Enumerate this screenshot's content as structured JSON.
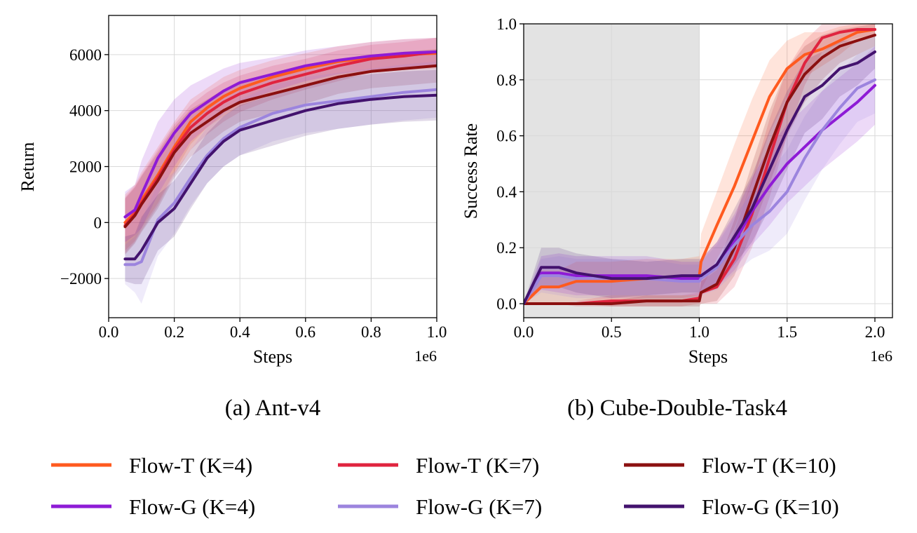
{
  "colors": {
    "flow_t_k4": "#ff5a1f",
    "flow_t_k7": "#e0243f",
    "flow_t_k10": "#8b1010",
    "flow_g_k4": "#8e1bd6",
    "flow_g_k7": "#9c84de",
    "flow_g_k10": "#43126e",
    "shade": "#e3e3e3",
    "grid": "#d9d9d9"
  },
  "legend": {
    "items": [
      {
        "label": "Flow-T (K=4)",
        "color_key": "flow_t_k4"
      },
      {
        "label": "Flow-T (K=7)",
        "color_key": "flow_t_k7"
      },
      {
        "label": "Flow-T (K=10)",
        "color_key": "flow_t_k10"
      },
      {
        "label": "Flow-G (K=4)",
        "color_key": "flow_g_k4"
      },
      {
        "label": "Flow-G (K=7)",
        "color_key": "flow_g_k7"
      },
      {
        "label": "Flow-G (K=10)",
        "color_key": "flow_g_k10"
      }
    ]
  },
  "chart_data": [
    {
      "type": "line",
      "caption": "(a) Ant-v4",
      "xlabel": "Steps",
      "ylabel": "Return",
      "x_offset_label": "1e6",
      "xlim": [
        0.0,
        1.0
      ],
      "ylim": [
        -3400,
        7400
      ],
      "xticks": [
        0.0,
        0.2,
        0.4,
        0.6,
        0.8,
        1.0
      ],
      "xtick_labels": [
        "0.0",
        "0.2",
        "0.4",
        "0.6",
        "0.8",
        "1.0"
      ],
      "yticks": [
        -2000,
        0,
        2000,
        4000,
        6000
      ],
      "ytick_labels": [
        "−2000",
        "0",
        "2000",
        "4000",
        "6000"
      ],
      "grid": true,
      "x": [
        0.05,
        0.08,
        0.1,
        0.15,
        0.2,
        0.25,
        0.3,
        0.35,
        0.4,
        0.5,
        0.6,
        0.7,
        0.8,
        0.9,
        1.0
      ],
      "series": [
        {
          "name": "Flow-T (K=4)",
          "color_key": "flow_t_k4",
          "values": [
            0,
            350,
            800,
            1700,
            2700,
            3600,
            4100,
            4500,
            4800,
            5200,
            5500,
            5750,
            5900,
            6000,
            6050
          ],
          "band": [
            1000,
            1000,
            1000,
            1000,
            900,
            800,
            700,
            700,
            650,
            600,
            550,
            550,
            550,
            550,
            550
          ]
        },
        {
          "name": "Flow-T (K=7)",
          "color_key": "flow_t_k7",
          "values": [
            -100,
            300,
            700,
            1600,
            2600,
            3400,
            3900,
            4300,
            4600,
            5000,
            5300,
            5600,
            5850,
            5950,
            6100
          ],
          "band": [
            1000,
            1000,
            1000,
            1000,
            900,
            800,
            750,
            700,
            650,
            600,
            550,
            550,
            500,
            500,
            500
          ]
        },
        {
          "name": "Flow-T (K=10)",
          "color_key": "flow_t_k10",
          "values": [
            -150,
            250,
            650,
            1500,
            2500,
            3200,
            3600,
            4000,
            4300,
            4600,
            4900,
            5200,
            5400,
            5500,
            5600
          ],
          "band": [
            1000,
            1000,
            1000,
            1000,
            900,
            850,
            800,
            750,
            700,
            700,
            650,
            600,
            600,
            600,
            600
          ]
        },
        {
          "name": "Flow-G (K=4)",
          "color_key": "flow_g_k4",
          "values": [
            200,
            450,
            1000,
            2300,
            3200,
            3900,
            4300,
            4700,
            5000,
            5300,
            5600,
            5800,
            5950,
            6050,
            6100
          ],
          "band": [
            900,
            900,
            1200,
            1300,
            1200,
            1000,
            900,
            800,
            700,
            600,
            550,
            500,
            500,
            500,
            500
          ]
        },
        {
          "name": "Flow-G (K=7)",
          "color_key": "flow_g_k7",
          "values": [
            -1500,
            -1500,
            -1400,
            100,
            700,
            1600,
            2400,
            3000,
            3400,
            3900,
            4200,
            4350,
            4500,
            4650,
            4750
          ],
          "band": [
            700,
            1000,
            1500,
            1300,
            1100,
            1000,
            1000,
            1000,
            1000,
            1000,
            1000,
            1000,
            1000,
            1000,
            1000
          ]
        },
        {
          "name": "Flow-G (K=10)",
          "color_key": "flow_g_k10",
          "values": [
            -1300,
            -1300,
            -1000,
            0,
            500,
            1400,
            2300,
            2900,
            3300,
            3650,
            4000,
            4250,
            4400,
            4500,
            4550
          ],
          "band": [
            800,
            900,
            1200,
            1000,
            1000,
            900,
            900,
            900,
            900,
            900,
            900,
            900,
            900,
            900,
            900
          ]
        }
      ]
    },
    {
      "type": "line",
      "caption": "(b) Cube-Double-Task4",
      "xlabel": "Steps",
      "ylabel": "Success Rate",
      "x_offset_label": "1e6",
      "xlim": [
        0.0,
        2.1
      ],
      "ylim": [
        -0.05,
        1.0
      ],
      "xticks": [
        0.0,
        0.5,
        1.0,
        1.5,
        2.0
      ],
      "xtick_labels": [
        "0.0",
        "0.5",
        "1.0",
        "1.5",
        "2.0"
      ],
      "yticks": [
        0.0,
        0.2,
        0.4,
        0.6,
        0.8,
        1.0
      ],
      "ytick_labels": [
        "0.0",
        "0.2",
        "0.4",
        "0.6",
        "0.8",
        "1.0"
      ],
      "grid": true,
      "shaded_region": [
        0.0,
        1.0
      ],
      "x": [
        0.0,
        0.1,
        0.2,
        0.3,
        0.5,
        0.7,
        0.9,
        1.0,
        1.01,
        1.1,
        1.2,
        1.3,
        1.4,
        1.5,
        1.6,
        1.7,
        1.8,
        1.9,
        2.0
      ],
      "series": [
        {
          "name": "Flow-T (K=4)",
          "color_key": "flow_t_k4",
          "values": [
            0.0,
            0.06,
            0.06,
            0.08,
            0.08,
            0.09,
            0.09,
            0.1,
            0.15,
            0.28,
            0.42,
            0.58,
            0.74,
            0.84,
            0.89,
            0.91,
            0.94,
            0.97,
            0.98
          ],
          "band": [
            0.0,
            0.06,
            0.06,
            0.07,
            0.07,
            0.07,
            0.07,
            0.07,
            0.1,
            0.12,
            0.15,
            0.15,
            0.13,
            0.1,
            0.08,
            0.06,
            0.05,
            0.03,
            0.02
          ]
        },
        {
          "name": "Flow-T (K=7)",
          "color_key": "flow_t_k7",
          "values": [
            0.0,
            0.0,
            0.0,
            0.0,
            0.01,
            0.01,
            0.01,
            0.02,
            0.04,
            0.06,
            0.16,
            0.32,
            0.52,
            0.72,
            0.86,
            0.95,
            0.97,
            0.98,
            0.98
          ],
          "band": [
            0.0,
            0.0,
            0.0,
            0.01,
            0.02,
            0.02,
            0.02,
            0.02,
            0.04,
            0.06,
            0.1,
            0.12,
            0.14,
            0.12,
            0.08,
            0.05,
            0.04,
            0.03,
            0.02
          ]
        },
        {
          "name": "Flow-T (K=10)",
          "color_key": "flow_t_k10",
          "values": [
            0.0,
            0.0,
            0.0,
            0.0,
            0.0,
            0.01,
            0.01,
            0.01,
            0.04,
            0.07,
            0.2,
            0.38,
            0.56,
            0.72,
            0.82,
            0.88,
            0.92,
            0.94,
            0.96
          ],
          "band": [
            0.0,
            0.0,
            0.0,
            0.0,
            0.01,
            0.02,
            0.02,
            0.02,
            0.04,
            0.06,
            0.1,
            0.12,
            0.13,
            0.12,
            0.1,
            0.08,
            0.06,
            0.05,
            0.04
          ]
        },
        {
          "name": "Flow-G (K=4)",
          "color_key": "flow_g_k4",
          "values": [
            0.0,
            0.11,
            0.11,
            0.1,
            0.1,
            0.1,
            0.09,
            0.09,
            0.1,
            0.14,
            0.22,
            0.33,
            0.42,
            0.5,
            0.56,
            0.62,
            0.67,
            0.72,
            0.78
          ],
          "band": [
            0.0,
            0.06,
            0.07,
            0.07,
            0.07,
            0.07,
            0.06,
            0.06,
            0.06,
            0.08,
            0.1,
            0.12,
            0.14,
            0.14,
            0.14,
            0.14,
            0.14,
            0.14,
            0.14
          ]
        },
        {
          "name": "Flow-G (K=7)",
          "color_key": "flow_g_k7",
          "values": [
            0.0,
            0.1,
            0.1,
            0.09,
            0.09,
            0.09,
            0.08,
            0.08,
            0.09,
            0.13,
            0.21,
            0.28,
            0.33,
            0.4,
            0.52,
            0.62,
            0.7,
            0.77,
            0.8
          ],
          "band": [
            0.0,
            0.06,
            0.07,
            0.07,
            0.07,
            0.07,
            0.06,
            0.06,
            0.06,
            0.08,
            0.1,
            0.12,
            0.14,
            0.15,
            0.15,
            0.14,
            0.13,
            0.12,
            0.12
          ]
        },
        {
          "name": "Flow-G (K=10)",
          "color_key": "flow_g_k10",
          "values": [
            0.0,
            0.13,
            0.13,
            0.11,
            0.09,
            0.09,
            0.1,
            0.1,
            0.1,
            0.14,
            0.24,
            0.34,
            0.48,
            0.62,
            0.74,
            0.78,
            0.84,
            0.86,
            0.9
          ],
          "band": [
            0.0,
            0.07,
            0.07,
            0.07,
            0.07,
            0.06,
            0.06,
            0.06,
            0.06,
            0.08,
            0.1,
            0.12,
            0.14,
            0.14,
            0.13,
            0.12,
            0.1,
            0.08,
            0.06
          ]
        }
      ]
    }
  ]
}
